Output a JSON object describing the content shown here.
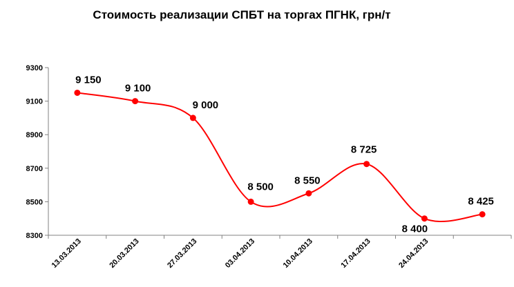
{
  "chart_data": {
    "type": "line",
    "title": "Стоимость реализации СПБТ на торгах ПГНК, грн/т",
    "xlabel": "",
    "ylabel": "",
    "categories": [
      "13.03.2013",
      "20.03.2013",
      "27.03.2013",
      "03.04.2013",
      "10.04.2013",
      "17.04.2013",
      "24.04.2013",
      ""
    ],
    "values": [
      9150,
      9100,
      9000,
      8500,
      8550,
      8725,
      8400,
      8425
    ],
    "data_labels": [
      "9 150",
      "9 100",
      "9 000",
      "8 500",
      "8 550",
      "8 725",
      "8 400",
      "8 425"
    ],
    "ylim": [
      8300,
      9300
    ],
    "yticks": [
      8300,
      8500,
      8700,
      8900,
      9100,
      9300
    ],
    "grid": false,
    "smooth": true,
    "line_color": "#ff0000",
    "marker_color": "#ff0000"
  }
}
